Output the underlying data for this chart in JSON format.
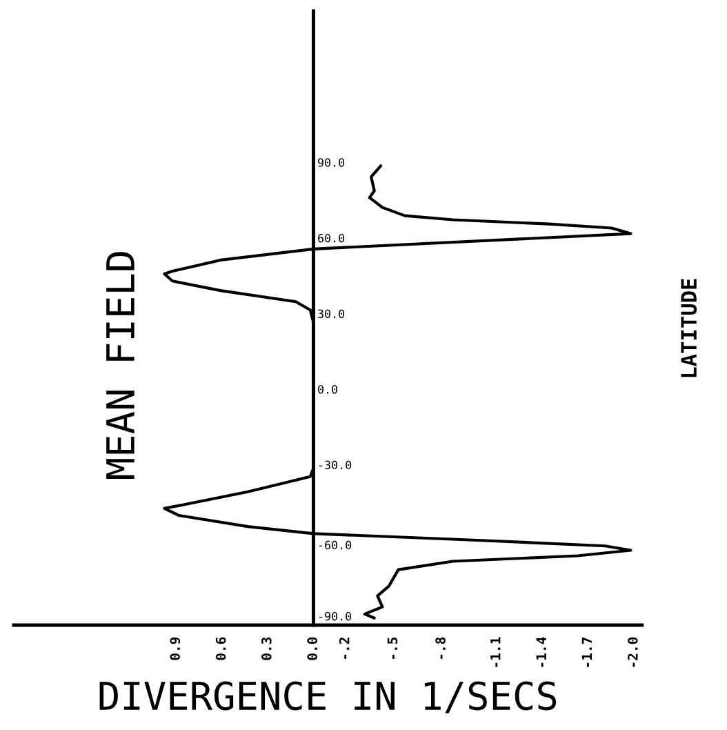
{
  "chart_data": {
    "type": "line",
    "title": "MEAN FIELD",
    "xlabel": "DIVERGENCE IN 1/SECS",
    "ylabel": "LATITUDE",
    "xlim": [
      1.87,
      -2.05
    ],
    "ylim": [
      -93.6,
      150
    ],
    "xticks": [
      {
        "value": 0.857,
        "label": "0.9"
      },
      {
        "value": 0.571,
        "label": "0.6"
      },
      {
        "value": 0.286,
        "label": "0.3"
      },
      {
        "value": 0,
        "label": "0.0"
      },
      {
        "value": -0.2,
        "label": "-.2"
      },
      {
        "value": -0.5,
        "label": "-.5"
      },
      {
        "value": -0.8,
        "label": "-.8"
      },
      {
        "value": -1.143,
        "label": "-1.1"
      },
      {
        "value": -1.429,
        "label": "-1.4"
      },
      {
        "value": -1.714,
        "label": "-1.7"
      },
      {
        "value": -2.0,
        "label": "-2.0"
      }
    ],
    "yticks": [
      {
        "value": 90,
        "label": "90.0"
      },
      {
        "value": 60,
        "label": "60.0"
      },
      {
        "value": 30,
        "label": "30.0"
      },
      {
        "value": 0,
        "label": "0.0"
      },
      {
        "value": -30,
        "label": "-30.0"
      },
      {
        "value": -60,
        "label": "-60.0"
      },
      {
        "value": -90,
        "label": "-90.0"
      }
    ],
    "grid": false,
    "legend": false,
    "marker": "none",
    "line_style": "solid",
    "series": [
      {
        "color": "#000000",
        "x": [
          -0.42,
          -0.36,
          -0.38,
          -0.35,
          -0.43,
          -0.57,
          -0.87,
          -1.47,
          -1.86,
          -1.98,
          0,
          0.58,
          0.88,
          0.93,
          0.88,
          0.58,
          0.11,
          0.02,
          0,
          0,
          0.02,
          0.41,
          0.8,
          0.93,
          0.84,
          0.41,
          0,
          -1.05,
          -1.82,
          -1.98,
          -1.65,
          -0.87,
          -0.53,
          -0.47,
          -0.4,
          -0.43,
          -0.32,
          -0.38
        ],
        "values": [
          88.6,
          84.2,
          78.7,
          76.0,
          72.1,
          68.8,
          67.2,
          65.5,
          63.9,
          61.7,
          55.6,
          51.2,
          46.8,
          45.7,
          42.9,
          39.1,
          34.7,
          31.4,
          26.4,
          -31.4,
          -34.7,
          -40.7,
          -45.7,
          -47.3,
          -50.1,
          -54.5,
          -57.3,
          -60.0,
          -62.2,
          -63.9,
          -66.1,
          -68.3,
          -71.6,
          -78.2,
          -82.0,
          -86.4,
          -89.2,
          -90.8
        ]
      }
    ]
  }
}
